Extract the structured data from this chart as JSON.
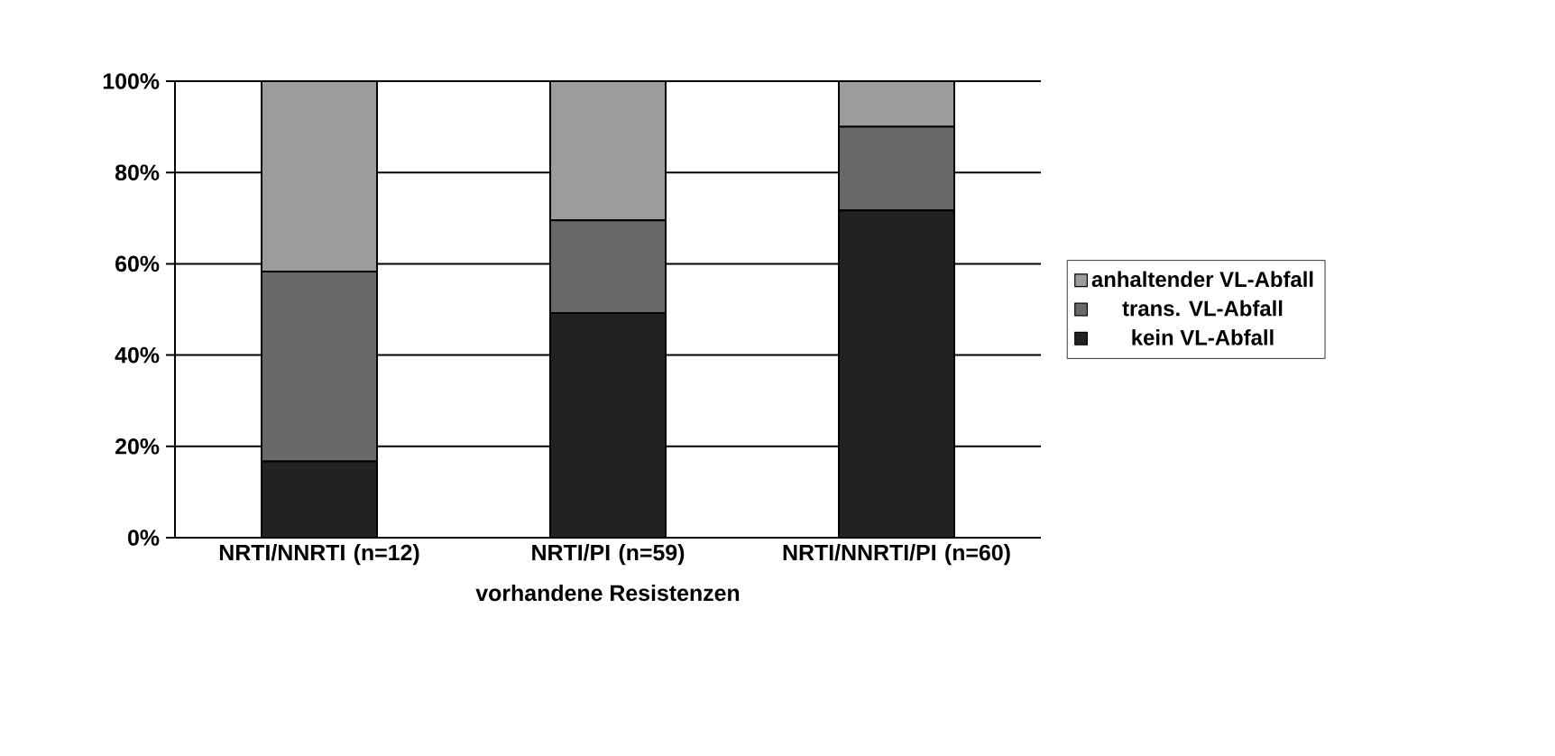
{
  "chart_data": {
    "type": "bar",
    "stacked": true,
    "xlabel": "vorhandene Resistenzen",
    "categories": [
      "NRTI/NNRTI (n=12)",
      "NRTI/PI (n=59)",
      "NRTI/NNRTI/PI (n=60)"
    ],
    "series": [
      {
        "name": "kein VL-Abfall",
        "color": "#222222",
        "values": [
          16.7,
          49.2,
          71.7
        ]
      },
      {
        "name": "trans. VL-Abfall",
        "color": "#696969",
        "values": [
          41.6,
          20.3,
          18.3
        ]
      },
      {
        "name": "anhaltender VL-Abfall",
        "color": "#9c9c9c",
        "values": [
          41.7,
          30.5,
          10.0
        ]
      }
    ],
    "ylim": [
      0,
      100
    ],
    "yticks": [
      {
        "value": 0,
        "label": "0%"
      },
      {
        "value": 20,
        "label": "20%"
      },
      {
        "value": 40,
        "label": "40%"
      },
      {
        "value": 60,
        "label": "60%"
      },
      {
        "value": 80,
        "label": "80%"
      },
      {
        "value": 100,
        "label": "100%"
      }
    ],
    "grid": "y",
    "legend": "right"
  }
}
